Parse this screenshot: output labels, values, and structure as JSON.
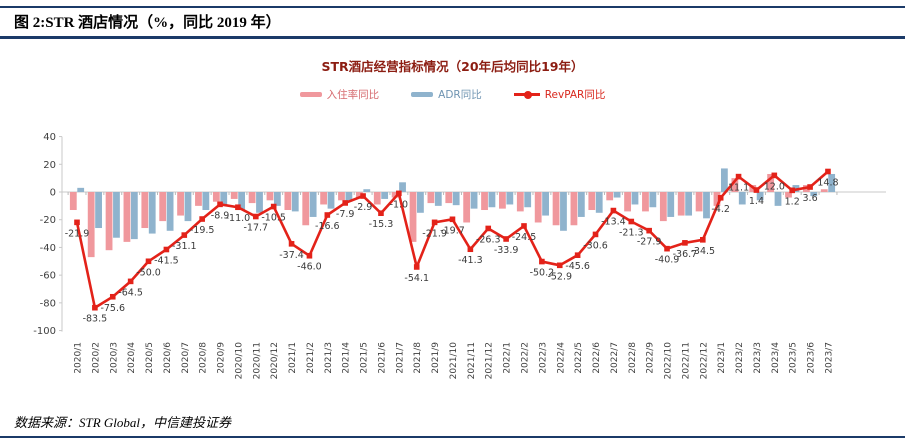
{
  "header": {
    "title": "图 2:STR 酒店情况（%，同比 2019 年）"
  },
  "footer": {
    "source": "数据来源：STR Global，中信建投证券"
  },
  "colors": {
    "accent_navy": "#1b3a68",
    "chart_title_red": "#8c1d12",
    "occupancy_bar": "#f0989d",
    "adr_bar": "#8fb3cd",
    "revpar_line": "#e32219",
    "axis_text": "#404040",
    "label_text": "#3a3a3a",
    "axis_line": "#c9c9c9"
  },
  "chart_data": {
    "type": "bar",
    "subtype": "grouped-bars-with-line",
    "title": "STR酒店经营指标情况（20年后均同比19年）",
    "ylim": [
      -100,
      40
    ],
    "yticks": [
      40,
      20,
      0,
      -20,
      -40,
      -60,
      -80,
      -100
    ],
    "grid": false,
    "legend_position": "top",
    "categories": [
      "2020/1",
      "2020/2",
      "2020/3",
      "2020/4",
      "2020/5",
      "2020/6",
      "2020/7",
      "2020/8",
      "2020/9",
      "2020/10",
      "2020/11",
      "2020/12",
      "2021/1",
      "2021/2",
      "2021/3",
      "2021/4",
      "2021/5",
      "2021/6",
      "2021/7",
      "2021/8",
      "2021/9",
      "2021/10",
      "2021/11",
      "2021/12",
      "2022/1",
      "2022/2",
      "2022/3",
      "2022/4",
      "2022/5",
      "2022/6",
      "2022/7",
      "2022/8",
      "2022/9",
      "2022/10",
      "2022/11",
      "2022/12",
      "2023/1",
      "2023/2",
      "2023/3",
      "2023/4",
      "2023/5",
      "2023/6",
      "2023/7"
    ],
    "series": [
      {
        "name": "入住率同比",
        "type": "bar",
        "values": [
          -13,
          -47,
          -42,
          -36,
          -26,
          -21,
          -17,
          -10,
          -7,
          -5,
          -8,
          -6,
          -13,
          -24,
          -9,
          -6,
          -4,
          -9,
          -4,
          -36,
          -8,
          -8,
          -22,
          -13,
          -12,
          -14,
          -22,
          -24,
          -24,
          -13,
          -6,
          -14,
          -14,
          -21,
          -17,
          -14,
          -10,
          10,
          5,
          13,
          -4,
          5,
          2
        ]
      },
      {
        "name": "ADR同比",
        "type": "bar",
        "values": [
          3,
          -26,
          -33,
          -34,
          -30,
          -28,
          -21,
          -13,
          -9,
          -13,
          -15,
          -10,
          -14,
          -18,
          -12,
          -7,
          2,
          -5,
          7,
          -15,
          -10,
          -9.5,
          -12,
          -11,
          -9,
          -11,
          -17,
          -28,
          -18,
          -15,
          -4,
          -9,
          -11,
          -18,
          -17,
          -19,
          17,
          -9,
          -6,
          -10,
          5,
          -3,
          13
        ]
      },
      {
        "name": "RevPAR同比",
        "type": "line",
        "labeled": true,
        "values": [
          -21.9,
          -83.5,
          -75.6,
          -64.5,
          -50.0,
          -41.5,
          -31.1,
          -19.5,
          -8.9,
          -11.0,
          -17.7,
          -10.5,
          -37.4,
          -46.0,
          -16.6,
          -7.9,
          -2.9,
          -15.3,
          -1.0,
          -54.1,
          -21.9,
          -19.7,
          -41.3,
          -26.3,
          -33.9,
          -24.5,
          -50.2,
          -52.9,
          -45.6,
          -30.6,
          -13.4,
          -21.3,
          -27.9,
          -40.9,
          -36.7,
          -34.5,
          -4.2,
          11.1,
          1.4,
          12.0,
          1.2,
          3.6,
          14.8
        ]
      }
    ]
  }
}
